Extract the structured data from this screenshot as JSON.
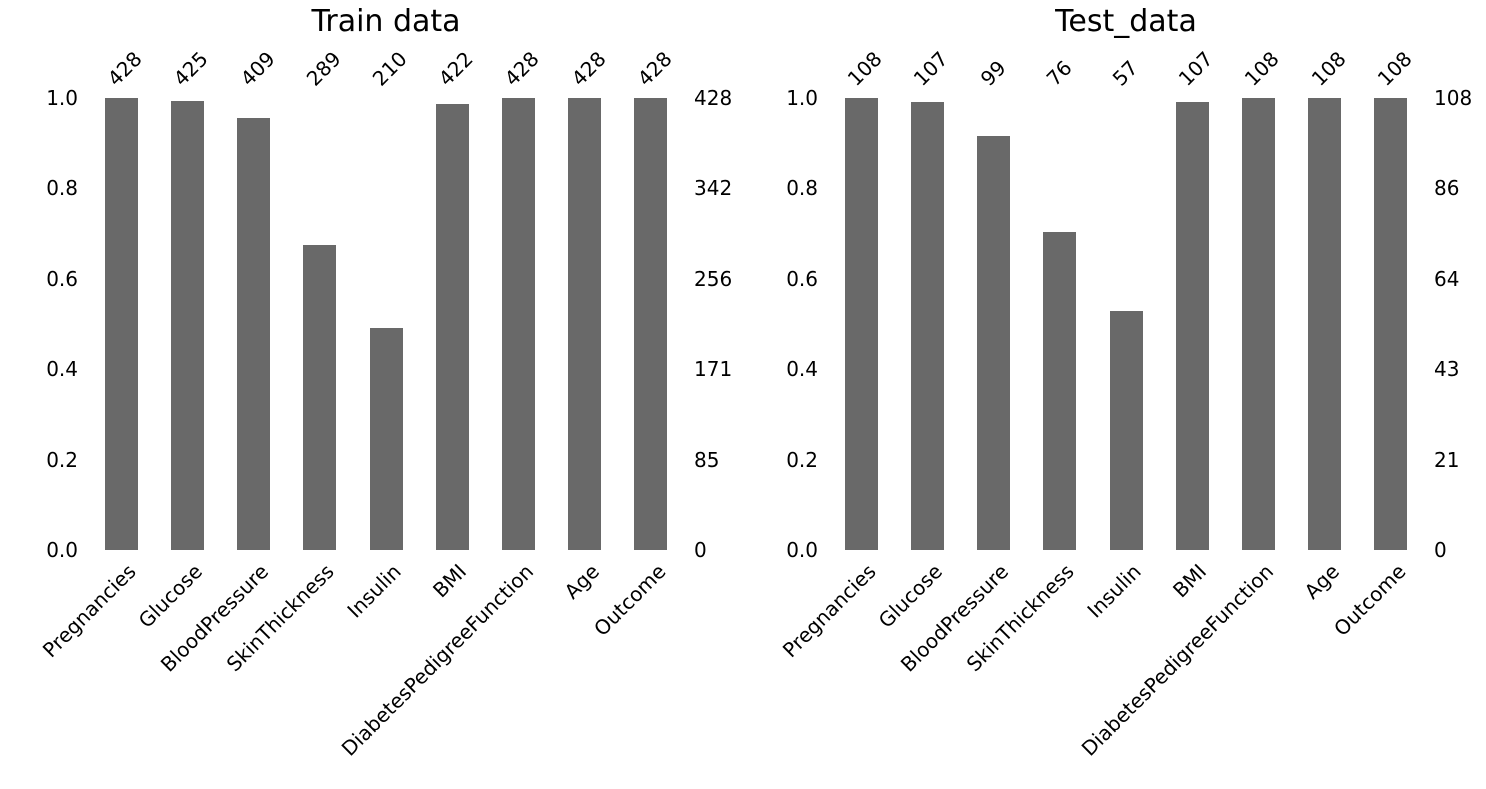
{
  "figure": {
    "background": "#ffffff",
    "bar_color": "#696969",
    "text_color": "#000000"
  },
  "chart_data": [
    {
      "type": "bar",
      "title": "Train data",
      "categories": [
        "Pregnancies",
        "Glucose",
        "BloodPressure",
        "SkinThickness",
        "Insulin",
        "BMI",
        "DiabetesPedigreeFunction",
        "Age",
        "Outcome"
      ],
      "values": [
        428,
        425,
        409,
        289,
        210,
        422,
        428,
        428,
        428
      ],
      "bar_value_labels": [
        "428",
        "425",
        "409",
        "289",
        "210",
        "422",
        "428",
        "428",
        "428"
      ],
      "y_max_count": 428,
      "ylim": [
        0.0,
        1.0
      ],
      "left_axis_ticks": [
        "1.0",
        "0.8",
        "0.6",
        "0.4",
        "0.2",
        "0.0"
      ],
      "right_axis_ticks": [
        "428",
        "342",
        "256",
        "171",
        "85",
        "0"
      ],
      "grid": false,
      "xlabel": "",
      "ylabel": ""
    },
    {
      "type": "bar",
      "title": "Test_data",
      "categories": [
        "Pregnancies",
        "Glucose",
        "BloodPressure",
        "SkinThickness",
        "Insulin",
        "BMI",
        "DiabetesPedigreeFunction",
        "Age",
        "Outcome"
      ],
      "values": [
        108,
        107,
        99,
        76,
        57,
        107,
        108,
        108,
        108
      ],
      "bar_value_labels": [
        "108",
        "107",
        "99",
        "76",
        "57",
        "107",
        "108",
        "108",
        "108"
      ],
      "y_max_count": 108,
      "ylim": [
        0.0,
        1.0
      ],
      "left_axis_ticks": [
        "1.0",
        "0.8",
        "0.6",
        "0.4",
        "0.2",
        "0.0"
      ],
      "right_axis_ticks": [
        "108",
        "86",
        "64",
        "43",
        "21",
        "0"
      ],
      "grid": false,
      "xlabel": "",
      "ylabel": ""
    }
  ]
}
